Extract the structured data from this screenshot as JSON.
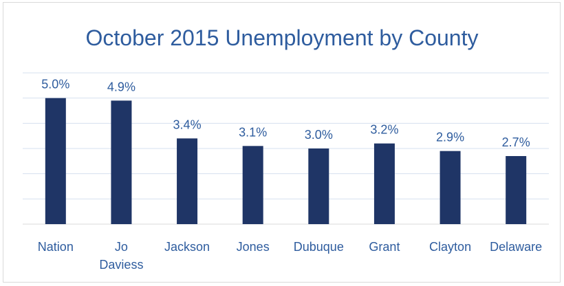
{
  "colors": {
    "bar": "#1f3566",
    "text": "#2e5c9e",
    "grid": "#d6e0ef",
    "axis": "#d9d9d9"
  },
  "chart_data": {
    "type": "bar",
    "title": "October 2015 Unemployment by County",
    "xlabel": "",
    "ylabel": "",
    "ylim": [
      0,
      6.0
    ],
    "grid": true,
    "legend": "none",
    "value_suffix": "%",
    "categories": [
      [
        "Nation"
      ],
      [
        "Jo",
        "Daviess"
      ],
      [
        "Jackson"
      ],
      [
        "Jones"
      ],
      [
        "Dubuque"
      ],
      [
        "Grant"
      ],
      [
        "Clayton"
      ],
      [
        "Delaware"
      ]
    ],
    "values": [
      5.0,
      4.9,
      3.4,
      3.1,
      3.0,
      3.2,
      2.9,
      2.7
    ],
    "data_labels": [
      "5.0%",
      "4.9%",
      "3.4%",
      "3.1%",
      "3.0%",
      "3.2%",
      "2.9%",
      "2.7%"
    ]
  }
}
